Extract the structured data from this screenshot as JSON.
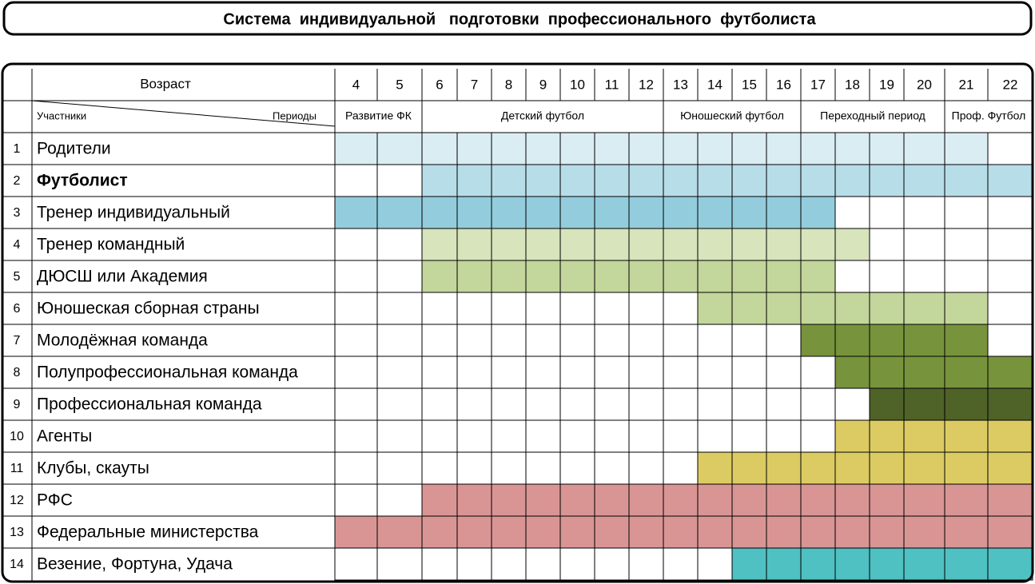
{
  "title": "Система  индивидуальной   подготовки  профессионального  футболиста",
  "header": {
    "age_label": "Возраст",
    "participants_label": "Участники",
    "periods_label": "Периоды",
    "ages": [
      4,
      5,
      6,
      7,
      8,
      9,
      10,
      11,
      12,
      13,
      14,
      15,
      16,
      17,
      18,
      19,
      20,
      21,
      22
    ],
    "periods": [
      {
        "label": "Развитие ФК",
        "from": 4,
        "to": 5
      },
      {
        "label": "Детский футбол",
        "from": 6,
        "to": 12
      },
      {
        "label": "Юношеский футбол",
        "from": 13,
        "to": 16
      },
      {
        "label": "Переходный период",
        "from": 17,
        "to": 20
      },
      {
        "label": "Проф. Футбол",
        "from": 21,
        "to": 22
      }
    ]
  },
  "rows": [
    {
      "num": "1",
      "name": "Родители",
      "from": 4,
      "to": 21,
      "color": "#daedf3",
      "bold": false
    },
    {
      "num": "2",
      "name": "Футболист",
      "from": 6,
      "to": 22,
      "color": "#b7dde8",
      "bold": true
    },
    {
      "num": "3",
      "name": "Тренер индивидуальный",
      "from": 4,
      "to": 17,
      "color": "#93cddd",
      "bold": false
    },
    {
      "num": "4",
      "name": "Тренер командный",
      "from": 6,
      "to": 18,
      "color": "#d7e4bc",
      "bold": false
    },
    {
      "num": "5",
      "name": "ДЮСШ или Академия",
      "from": 6,
      "to": 17,
      "color": "#c3d69b",
      "bold": false
    },
    {
      "num": "6",
      "name": "Юношеская сборная страны",
      "from": 14,
      "to": 21,
      "color": "#c3d69b",
      "bold": false
    },
    {
      "num": "7",
      "name": "Молодёжная команда",
      "from": 17,
      "to": 21,
      "color": "#77933c",
      "bold": false
    },
    {
      "num": "8",
      "name": "Полупрофессиональная команда",
      "from": 18,
      "to": 22,
      "color": "#77933c",
      "bold": false
    },
    {
      "num": "9",
      "name": "Профессиональная команда",
      "from": 19,
      "to": 22,
      "color": "#4f6228",
      "bold": false
    },
    {
      "num": "10",
      "name": "Агенты",
      "from": 18,
      "to": 22,
      "color": "#dccb63",
      "bold": false
    },
    {
      "num": "11",
      "name": "Клубы, скауты",
      "from": 14,
      "to": 22,
      "color": "#dccb63",
      "bold": false
    },
    {
      "num": "12",
      "name": "РФС",
      "from": 6,
      "to": 22,
      "color": "#d99594",
      "bold": false
    },
    {
      "num": "13",
      "name": "Федеральные министерства",
      "from": 4,
      "to": 22,
      "color": "#d99594",
      "bold": false
    },
    {
      "num": "14",
      "name": "Везение, Фортуна, Удача",
      "from": 15,
      "to": 22,
      "color": "#4fc1c2",
      "bold": false
    }
  ]
}
